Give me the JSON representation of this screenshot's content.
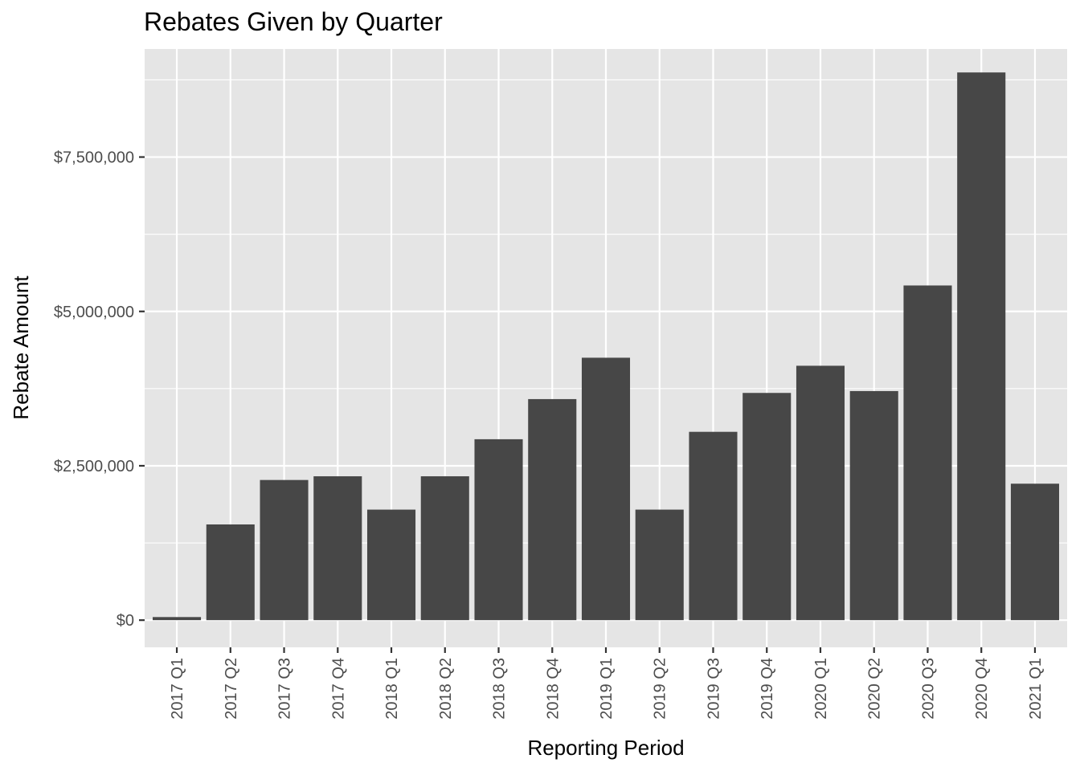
{
  "chart_data": {
    "type": "bar",
    "title": "Rebates Given by Quarter",
    "xlabel": "Reporting Period",
    "ylabel": "Rebate Amount",
    "categories": [
      "2017 Q1",
      "2017 Q2",
      "2017 Q3",
      "2017 Q4",
      "2018 Q1",
      "2018 Q2",
      "2018 Q3",
      "2018 Q4",
      "2019 Q1",
      "2019 Q2",
      "2019 Q3",
      "2019 Q4",
      "2020 Q1",
      "2020 Q2",
      "2020 Q3",
      "2020 Q4",
      "2021 Q1"
    ],
    "values": [
      50000,
      1550000,
      2270000,
      2330000,
      1790000,
      2330000,
      2930000,
      3580000,
      4250000,
      1790000,
      3050000,
      3680000,
      4120000,
      3710000,
      5420000,
      8870000,
      2210000
    ],
    "ylim": [
      -440000,
      9250000
    ],
    "yticks": [
      0,
      2500000,
      5000000,
      7500000
    ],
    "ytick_labels": [
      "$0",
      "$2,500,000",
      "$5,000,000",
      "$7,500,000"
    ],
    "grid": true,
    "bar_color": "#474747",
    "panel_color": "#e5e5e5",
    "grid_color": "#ffffff"
  }
}
